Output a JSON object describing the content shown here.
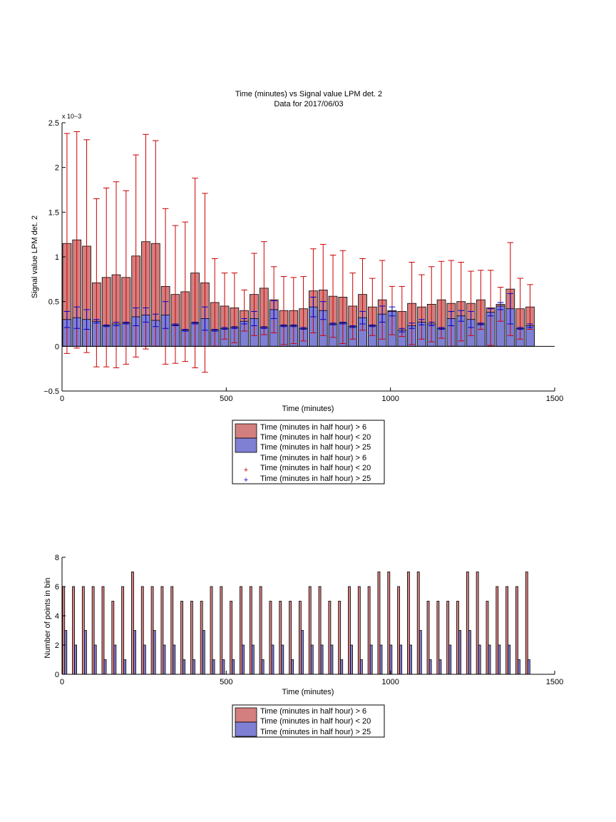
{
  "chart_data": [
    {
      "type": "bar",
      "title": "Time (minutes) vs Signal value LPM det. 2",
      "subtitle": "Data for 2017/06/03",
      "xlabel": "Time (minutes)",
      "ylabel": "Signal value LPM det. 2",
      "yexponent": "x 10−3",
      "xlim": [
        0,
        1500
      ],
      "ylim": [
        -0.5,
        2.5
      ],
      "xticks": [
        "0",
        "500",
        "1000",
        "1500"
      ],
      "yticks": [
        "−0.5",
        "0",
        "0.5",
        "1",
        "1.5",
        "2",
        "2.5"
      ],
      "grid": false,
      "legend_position": "below",
      "legend": [
        "Time (minutes in half hour) > 6",
        "Time (minutes in half hour) < 20",
        "Time (minutes in half hour) > 25",
        "Time (minutes in half hour) > 6",
        "Time (minutes in half hour) < 20",
        "Time (minutes in half hour) > 25"
      ],
      "x": [
        15,
        45,
        75,
        105,
        135,
        165,
        195,
        225,
        255,
        285,
        315,
        345,
        375,
        405,
        435,
        465,
        495,
        525,
        555,
        585,
        615,
        645,
        675,
        705,
        735,
        765,
        795,
        825,
        855,
        885,
        915,
        945,
        975,
        1005,
        1035,
        1065,
        1095,
        1125,
        1155,
        1185,
        1215,
        1245,
        1275,
        1305,
        1335,
        1365,
        1395,
        1425
      ],
      "series": [
        {
          "color": "#d47f7f",
          "error_color": "#cc0000",
          "values": [
            1.15,
            1.19,
            1.12,
            0.71,
            0.77,
            0.8,
            0.77,
            1.01,
            1.17,
            1.15,
            0.67,
            0.58,
            0.61,
            0.82,
            0.71,
            0.49,
            0.45,
            0.43,
            0.4,
            0.58,
            0.65,
            0.52,
            0.4,
            0.4,
            0.42,
            0.62,
            0.63,
            0.56,
            0.55,
            0.45,
            0.58,
            0.44,
            0.52,
            0.4,
            0.39,
            0.48,
            0.44,
            0.47,
            0.52,
            0.48,
            0.5,
            0.48,
            0.52,
            0.43,
            0.47,
            0.64,
            0.42,
            0.44
          ],
          "errors": [
            1.23,
            1.21,
            1.19,
            0.94,
            1.0,
            1.04,
            0.97,
            1.13,
            1.2,
            1.15,
            0.87,
            0.77,
            0.78,
            1.06,
            1.0,
            0.49,
            0.37,
            0.39,
            0.23,
            0.46,
            0.52,
            0.37,
            0.38,
            0.37,
            0.36,
            0.47,
            0.51,
            0.46,
            0.52,
            0.37,
            0.4,
            0.32,
            0.44,
            0.27,
            0.28,
            0.46,
            0.36,
            0.42,
            0.43,
            0.48,
            0.44,
            0.36,
            0.33,
            0.42,
            0.19,
            0.52,
            0.34,
            0.25
          ]
        },
        {
          "color": "#7f7fd4",
          "error_color": "#0000cc",
          "values": [
            0.3,
            0.32,
            0.3,
            0.28,
            0.23,
            0.25,
            0.26,
            0.33,
            0.35,
            0.29,
            0.35,
            0.24,
            0.18,
            0.26,
            0.31,
            0.18,
            0.2,
            0.21,
            0.28,
            0.31,
            0.21,
            0.41,
            0.23,
            0.23,
            0.2,
            0.44,
            0.4,
            0.25,
            0.26,
            0.22,
            0.32,
            0.23,
            0.36,
            0.39,
            0.18,
            0.23,
            0.27,
            0.25,
            0.2,
            0.31,
            0.34,
            0.3,
            0.25,
            0.38,
            0.45,
            0.42,
            0.2,
            0.23
          ],
          "errors": [
            0.09,
            0.12,
            0.11,
            0.02,
            0.01,
            0.02,
            0.01,
            0.1,
            0.08,
            0.07,
            0.15,
            0.01,
            0.01,
            0.01,
            0.13,
            0.01,
            0.01,
            0.01,
            0.03,
            0.08,
            0.01,
            0.1,
            0.01,
            0.01,
            0.01,
            0.11,
            0.1,
            0.01,
            0.01,
            0.01,
            0.07,
            0.01,
            0.09,
            0.05,
            0.02,
            0.03,
            0.03,
            0.02,
            0.01,
            0.08,
            0.06,
            0.09,
            0.01,
            0.04,
            0.04,
            0.17,
            0.01,
            0.02
          ]
        }
      ]
    },
    {
      "type": "bar",
      "xlabel": "Time (minutes)",
      "ylabel": "Number of points in bin",
      "xlim": [
        0,
        1500
      ],
      "ylim": [
        0,
        8
      ],
      "xticks": [
        "0",
        "500",
        "1000",
        "1500"
      ],
      "yticks": [
        "0",
        "2",
        "4",
        "6",
        "8"
      ],
      "grid": false,
      "legend_position": "below",
      "legend": [
        "Time (minutes in half hour) > 6",
        "Time (minutes in half hour) < 20",
        "Time (minutes in half hour) > 25"
      ],
      "x": [
        15,
        45,
        75,
        105,
        135,
        165,
        195,
        225,
        255,
        285,
        315,
        345,
        375,
        405,
        435,
        465,
        495,
        525,
        555,
        585,
        615,
        645,
        675,
        705,
        735,
        765,
        795,
        825,
        855,
        885,
        915,
        945,
        975,
        1005,
        1035,
        1065,
        1095,
        1125,
        1155,
        1185,
        1215,
        1245,
        1275,
        1305,
        1335,
        1365,
        1395,
        1425
      ],
      "series": [
        {
          "color": "#d47f7f",
          "values": [
            6,
            6,
            6,
            6,
            6,
            5,
            6,
            7,
            6,
            6,
            6,
            6,
            5,
            5,
            5,
            6,
            6,
            5,
            6,
            6,
            6,
            5,
            5,
            5,
            5,
            6,
            6,
            5,
            5,
            6,
            6,
            6,
            7,
            7,
            6,
            7,
            7,
            5,
            5,
            5,
            5,
            7,
            7,
            5,
            6,
            6,
            6,
            7
          ]
        },
        {
          "color": "#7f7fd4",
          "values": [
            3,
            2,
            3,
            2,
            1,
            2,
            1,
            3,
            2,
            3,
            2,
            2,
            1,
            1,
            3,
            1,
            1,
            1,
            2,
            2,
            1,
            2,
            2,
            1,
            3,
            2,
            2,
            2,
            1,
            2,
            1,
            2,
            2,
            2,
            2,
            2,
            3,
            1,
            1,
            2,
            3,
            3,
            2,
            2,
            2,
            2,
            1,
            1
          ]
        }
      ]
    }
  ]
}
